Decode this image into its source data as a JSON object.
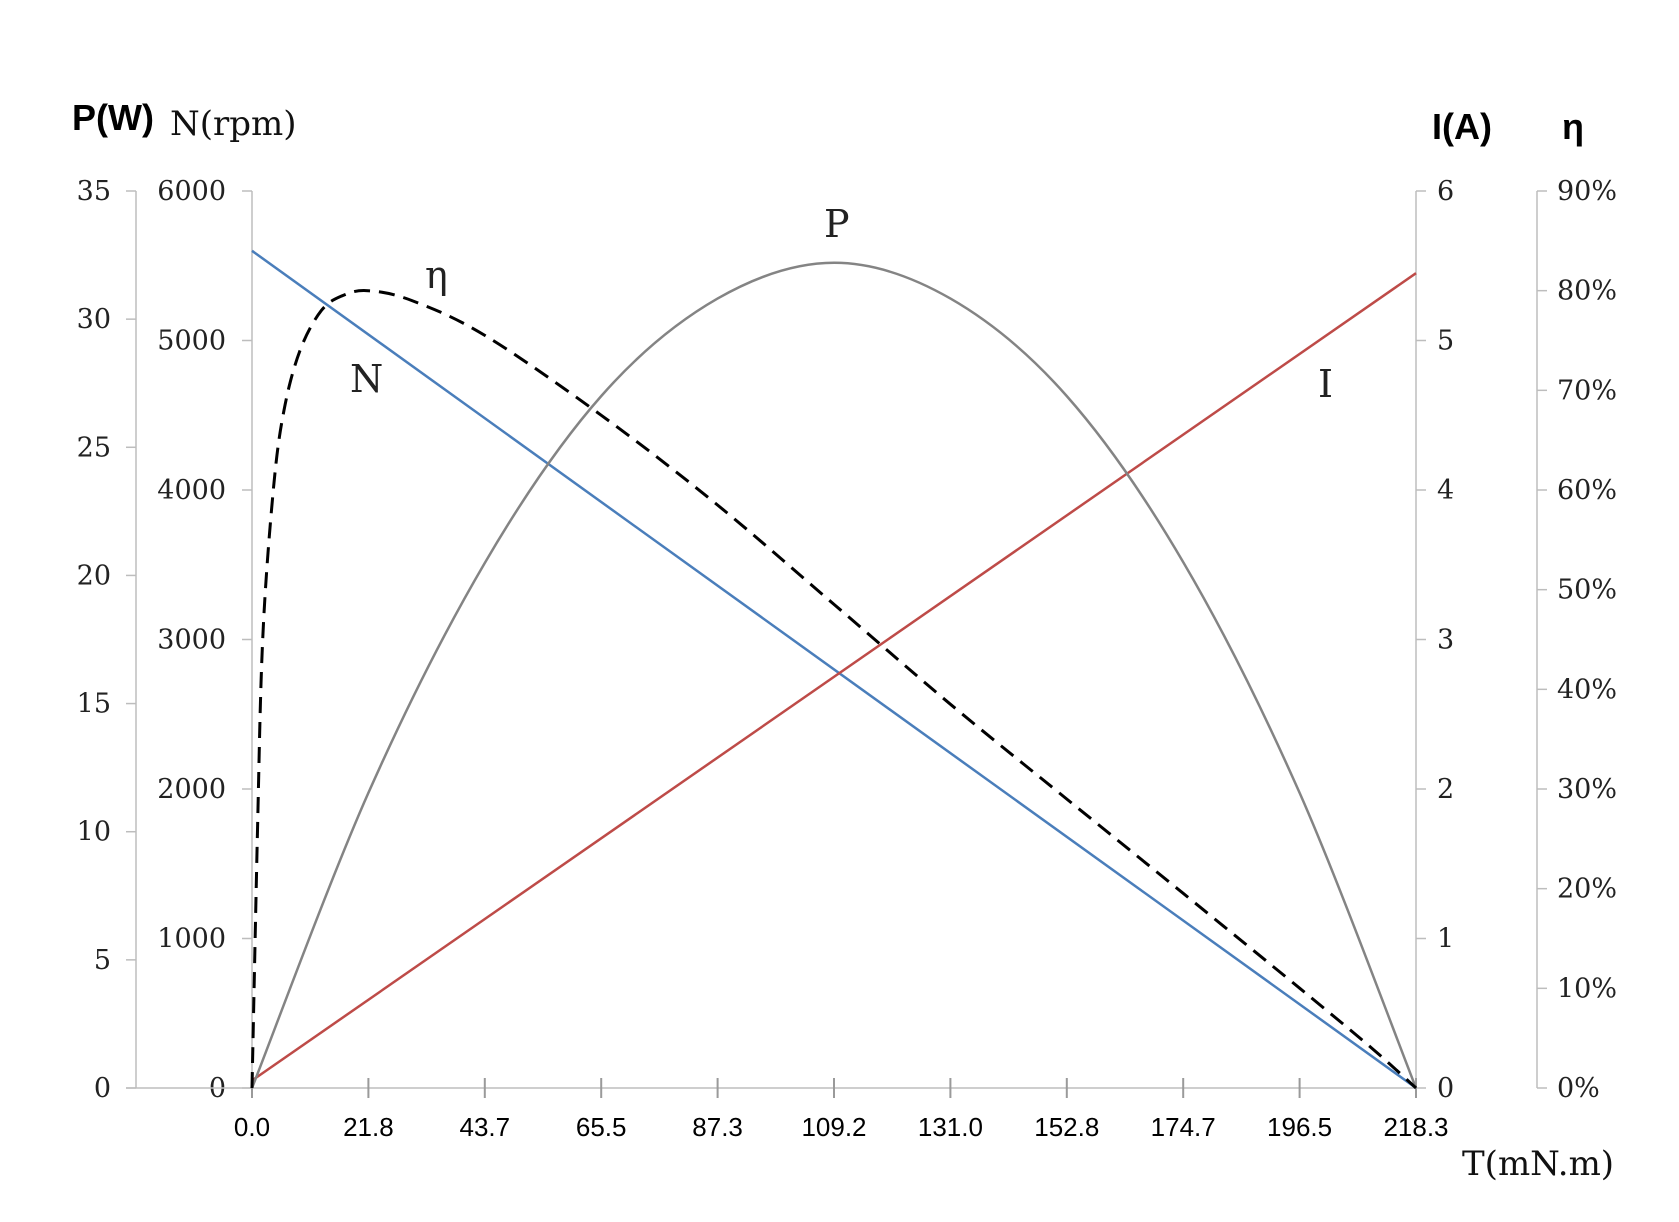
{
  "chart_data": {
    "type": "line",
    "xlabel": "T(mN.m)",
    "x_ticks": [
      "0.0",
      "21.8",
      "43.7",
      "65.5",
      "87.3",
      "109.2",
      "131.0",
      "152.8",
      "174.7",
      "196.5",
      "218.3"
    ],
    "axes": {
      "P": {
        "label": "P(W)",
        "range": [
          0,
          35
        ],
        "ticks": [
          "0",
          "5",
          "10",
          "15",
          "20",
          "25",
          "30",
          "35"
        ]
      },
      "N": {
        "label": "N(rpm)",
        "range": [
          0,
          6000
        ],
        "ticks": [
          "0",
          "1000",
          "2000",
          "3000",
          "4000",
          "5000",
          "6000"
        ]
      },
      "I": {
        "label": "I(A)",
        "range": [
          0,
          6
        ],
        "ticks": [
          "0",
          "1",
          "2",
          "3",
          "4",
          "5",
          "6"
        ]
      },
      "eta": {
        "label": "η",
        "range": [
          0,
          0.9
        ],
        "ticks": [
          "0%",
          "10%",
          "20%",
          "30%",
          "40%",
          "50%",
          "60%",
          "70%",
          "80%",
          "90%"
        ]
      }
    },
    "series": [
      {
        "name": "N",
        "axis": "N",
        "color": "#4a7ebb",
        "dash": "solid",
        "x": [
          0,
          218.3
        ],
        "values": [
          5600,
          0
        ]
      },
      {
        "name": "I",
        "axis": "I",
        "color": "#be4b48",
        "dash": "solid",
        "x": [
          0,
          218.3
        ],
        "values": [
          0.05,
          5.45
        ]
      },
      {
        "name": "P",
        "axis": "P",
        "color": "#848484",
        "dash": "solid",
        "x": [
          0,
          21.8,
          43.7,
          65.5,
          87.3,
          109.2,
          131.0,
          152.8,
          174.7,
          196.5,
          218.3
        ],
        "values": [
          0,
          11.5,
          20.5,
          27.0,
          30.8,
          32.2,
          30.8,
          27.0,
          20.5,
          11.5,
          0
        ]
      },
      {
        "name": "η",
        "axis": "eta",
        "color": "#000000",
        "dash": "dashed",
        "x": [
          0,
          1,
          2,
          4,
          6,
          9,
          13,
          17,
          21.8,
          30,
          43.7,
          65.5,
          87.3,
          109.2,
          131.0,
          152.8,
          174.7,
          196.5,
          210,
          218.3
        ],
        "values": [
          0,
          0.25,
          0.45,
          0.6,
          0.68,
          0.74,
          0.78,
          0.795,
          0.8,
          0.79,
          0.755,
          0.675,
          0.585,
          0.485,
          0.385,
          0.29,
          0.195,
          0.1,
          0.04,
          0
        ]
      }
    ]
  }
}
